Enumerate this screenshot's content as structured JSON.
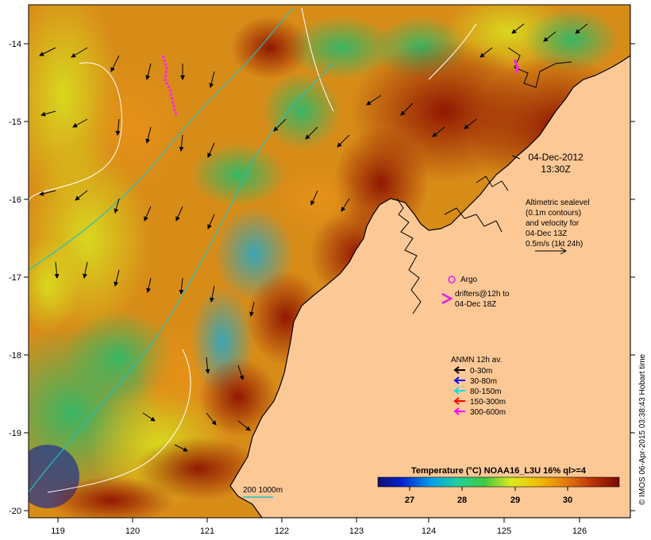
{
  "map": {
    "axes": {
      "x_ticks": [
        "119",
        "120",
        "121",
        "122",
        "123",
        "124",
        "125",
        "126"
      ],
      "y_ticks": [
        "-14",
        "-15",
        "-16",
        "-17",
        "-18",
        "-19",
        "-20"
      ],
      "x_range": [
        118.65,
        126.7
      ],
      "y_range": [
        -20.1,
        -13.55
      ]
    },
    "timestamp": {
      "date": "04-Dec-2012",
      "time": "13:30Z"
    },
    "altimetry_note": {
      "line1": "Altimetric sealevel",
      "line2": "(0.1m contours)",
      "line3": "and velocity for",
      "line4": "04-Dec 13Z",
      "line5": "0.5m/s (1kt 24h)"
    },
    "argo": {
      "label": "Argo",
      "color": "#e020e0"
    },
    "drifters": {
      "line1": "drifters@12h to",
      "line2": "04-Dec 18Z",
      "color": "#e020e0"
    },
    "anmn_legend": {
      "title": "ANMN 12h av.",
      "items": [
        {
          "label": "0-30m",
          "color": "#000000"
        },
        {
          "label": "30-80m",
          "color": "#0000ff"
        },
        {
          "label": "80-150m",
          "color": "#00e0e0"
        },
        {
          "label": "150-300m",
          "color": "#ff0000"
        },
        {
          "label": "300-600m",
          "color": "#ff00ff"
        }
      ]
    },
    "depth_contour_legend": {
      "label": "200  1000m",
      "color": "#20c0c0"
    },
    "colorbar": {
      "title": "Temperature (°C) NOAA16_L3U 16% ql>=4",
      "ticks": [
        "27",
        "28",
        "29",
        "30"
      ],
      "min": 26.0,
      "max": 31.0
    },
    "footer": "© IMOS 06-Apr-2015 03:38:43 Hobart time",
    "colors": {
      "land": "#fcc896",
      "coast": "#000000",
      "contour_altimetry": "#ffffff"
    }
  }
}
